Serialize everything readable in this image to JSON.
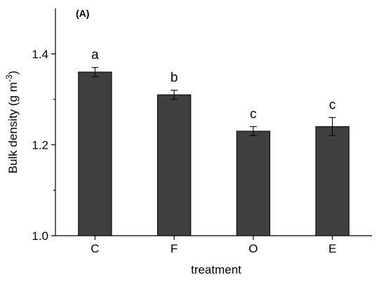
{
  "chart_data": {
    "type": "bar",
    "panel_label": "(A)",
    "categories": [
      "C",
      "F",
      "O",
      "E"
    ],
    "values": [
      1.36,
      1.31,
      1.23,
      1.24
    ],
    "errors": [
      0.01,
      0.01,
      0.01,
      0.02
    ],
    "significance": [
      "a",
      "b",
      "c",
      "c"
    ],
    "xlabel": "treatment",
    "ylabel": "Bulk density (g m",
    "ylabel_superscript": "-3",
    "ylabel_suffix": ")",
    "ylim": [
      1.0,
      1.5
    ],
    "yticks": [
      1.0,
      1.2,
      1.4
    ],
    "ytick_labels": [
      "1.0",
      "1.2",
      "1.4"
    ],
    "grid": false,
    "bar_color": "#3f3f3f"
  }
}
